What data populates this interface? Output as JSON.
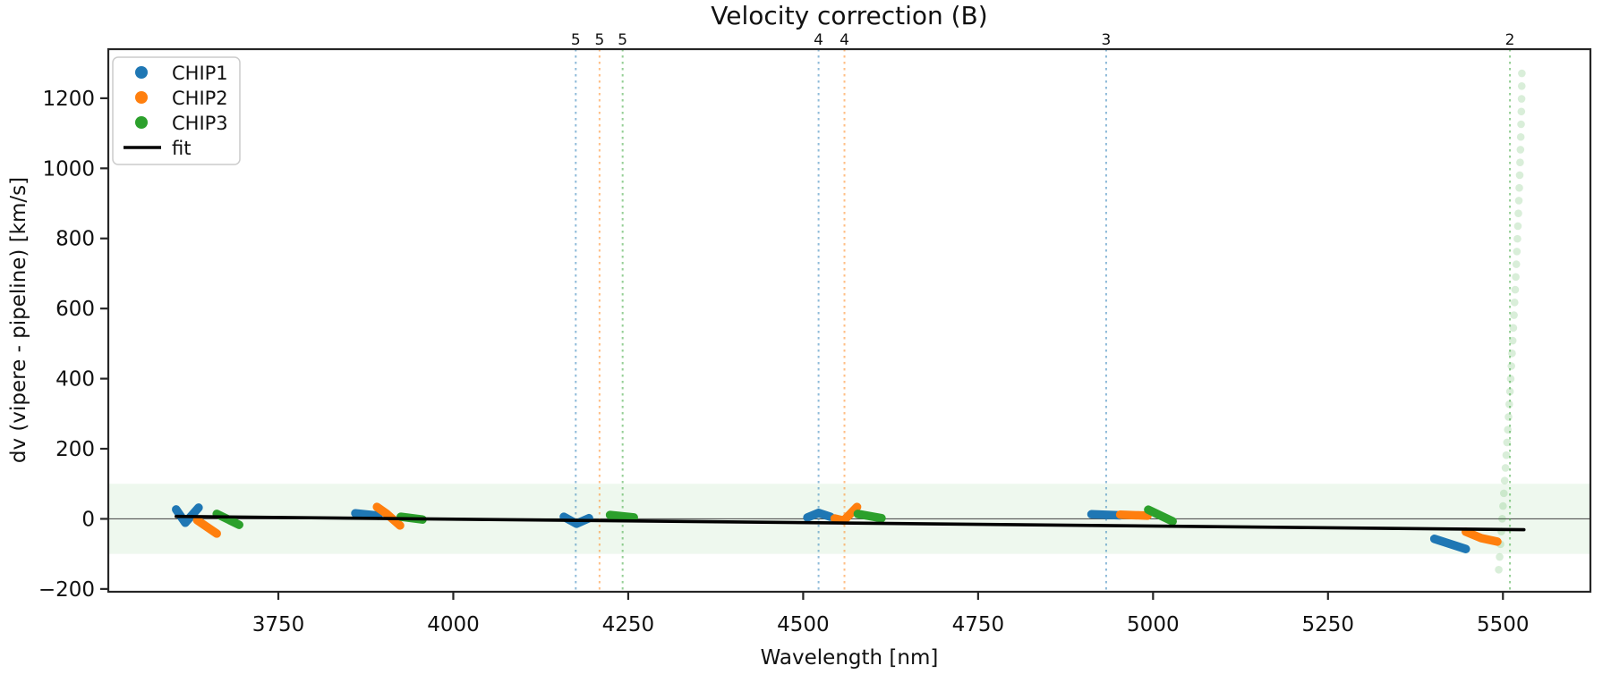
{
  "chart_data": {
    "type": "scatter",
    "title": "Velocity correction (B)",
    "xlabel": "Wavelength [nm]",
    "ylabel": "dv (vipere - pipeline) [km/s]",
    "xlim": [
      3507,
      5625
    ],
    "ylim": [
      -208,
      1340
    ],
    "xticks": [
      3750,
      4000,
      4250,
      4500,
      4750,
      5000,
      5250,
      5500
    ],
    "yticks": [
      -200,
      0,
      200,
      400,
      600,
      800,
      1000,
      1200
    ],
    "grid": false,
    "legend": {
      "position": "upper left",
      "entries": [
        {
          "label": "CHIP1",
          "color": "#1f77b4",
          "marker": "dot"
        },
        {
          "label": "CHIP2",
          "color": "#ff7f0e",
          "marker": "dot"
        },
        {
          "label": "CHIP3",
          "color": "#2ca02c",
          "marker": "dot"
        },
        {
          "label": "fit",
          "color": "#000000",
          "marker": "line"
        }
      ]
    },
    "zero_line": 0,
    "band": {
      "from": -100,
      "to": 100,
      "color": "rgba(44,160,44,0.08)"
    },
    "series": [
      {
        "name": "CHIP1",
        "color": "#1f77b4",
        "segments": [
          [
            [
              3604,
              27
            ],
            [
              3617,
              -11
            ],
            [
              3636,
              32
            ]
          ],
          [
            [
              3860,
              16
            ],
            [
              3893,
              9
            ]
          ],
          [
            [
              4158,
              6
            ],
            [
              4176,
              -14
            ],
            [
              4194,
              2
            ]
          ],
          [
            [
              4506,
              4
            ],
            [
              4522,
              17
            ],
            [
              4539,
              6
            ]
          ],
          [
            [
              4912,
              13
            ],
            [
              4953,
              10
            ]
          ],
          [
            [
              5402,
              -57
            ],
            [
              5447,
              -86
            ]
          ]
        ]
      },
      {
        "name": "CHIP2",
        "color": "#ff7f0e",
        "segments": [
          [
            [
              3634,
              -4
            ],
            [
              3662,
              -42
            ]
          ],
          [
            [
              3891,
              34
            ],
            [
              3905,
              14
            ],
            [
              3924,
              -19
            ]
          ],
          [
            [
              4545,
              1
            ],
            [
              4558,
              -5
            ],
            [
              4577,
              34
            ]
          ],
          [
            [
              4953,
              12
            ],
            [
              4992,
              9
            ]
          ],
          [
            [
              5447,
              -37
            ],
            [
              5469,
              -55
            ],
            [
              5492,
              -65
            ]
          ]
        ]
      },
      {
        "name": "CHIP3",
        "color": "#2ca02c",
        "segments": [
          [
            [
              3662,
              14
            ],
            [
              3694,
              -17
            ]
          ],
          [
            [
              3925,
              6
            ],
            [
              3956,
              -2
            ]
          ],
          [
            [
              4224,
              11
            ],
            [
              4258,
              4
            ]
          ],
          [
            [
              4578,
              14
            ],
            [
              4612,
              2
            ]
          ],
          [
            [
              4993,
              26
            ],
            [
              5028,
              -7
            ]
          ]
        ]
      }
    ],
    "fit_line": {
      "label": "fit",
      "color": "#000000",
      "points": [
        [
          3604,
          7
        ],
        [
          5530,
          -31
        ]
      ]
    },
    "vlines": [
      {
        "label": "5",
        "x": 4175,
        "color": "#1f77b4"
      },
      {
        "label": "5",
        "x": 4209,
        "color": "#ff7f0e"
      },
      {
        "label": "5",
        "x": 4242,
        "color": "#2ca02c"
      },
      {
        "label": "4",
        "x": 4522,
        "color": "#1f77b4"
      },
      {
        "label": "4",
        "x": 4559,
        "color": "#ff7f0e"
      },
      {
        "label": "3",
        "x": 4933,
        "color": "#1f77b4"
      },
      {
        "label": "2",
        "x": 5510,
        "color": "#2ca02c"
      }
    ],
    "faded_column": {
      "series": "CHIP3",
      "color": "#2ca02c",
      "opacity": 0.18,
      "top": {
        "x": 5527,
        "dv": 1271
      },
      "bottom": {
        "x": 5494,
        "dv": -145
      },
      "count": 40
    }
  }
}
